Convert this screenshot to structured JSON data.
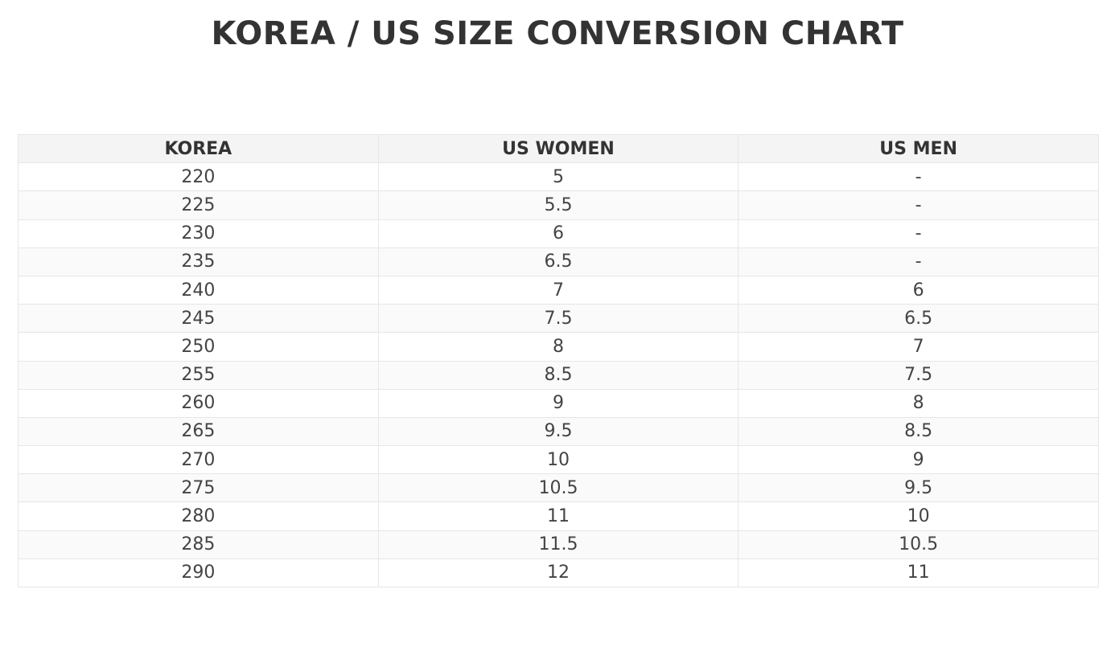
{
  "title": "KOREA / US SIZE CONVERSION CHART",
  "table": {
    "headers": [
      "KOREA",
      "US WOMEN",
      "US MEN"
    ],
    "rows": [
      [
        "220",
        "5",
        "-"
      ],
      [
        "225",
        "5.5",
        "-"
      ],
      [
        "230",
        "6",
        "-"
      ],
      [
        "235",
        "6.5",
        "-"
      ],
      [
        "240",
        "7",
        "6"
      ],
      [
        "245",
        "7.5",
        "6.5"
      ],
      [
        "250",
        "8",
        "7"
      ],
      [
        "255",
        "8.5",
        "7.5"
      ],
      [
        "260",
        "9",
        "8"
      ],
      [
        "265",
        "9.5",
        "8.5"
      ],
      [
        "270",
        "10",
        "9"
      ],
      [
        "275",
        "10.5",
        "9.5"
      ],
      [
        "280",
        "11",
        "10"
      ],
      [
        "285",
        "11.5",
        "10.5"
      ],
      [
        "290",
        "12",
        "11"
      ]
    ]
  }
}
